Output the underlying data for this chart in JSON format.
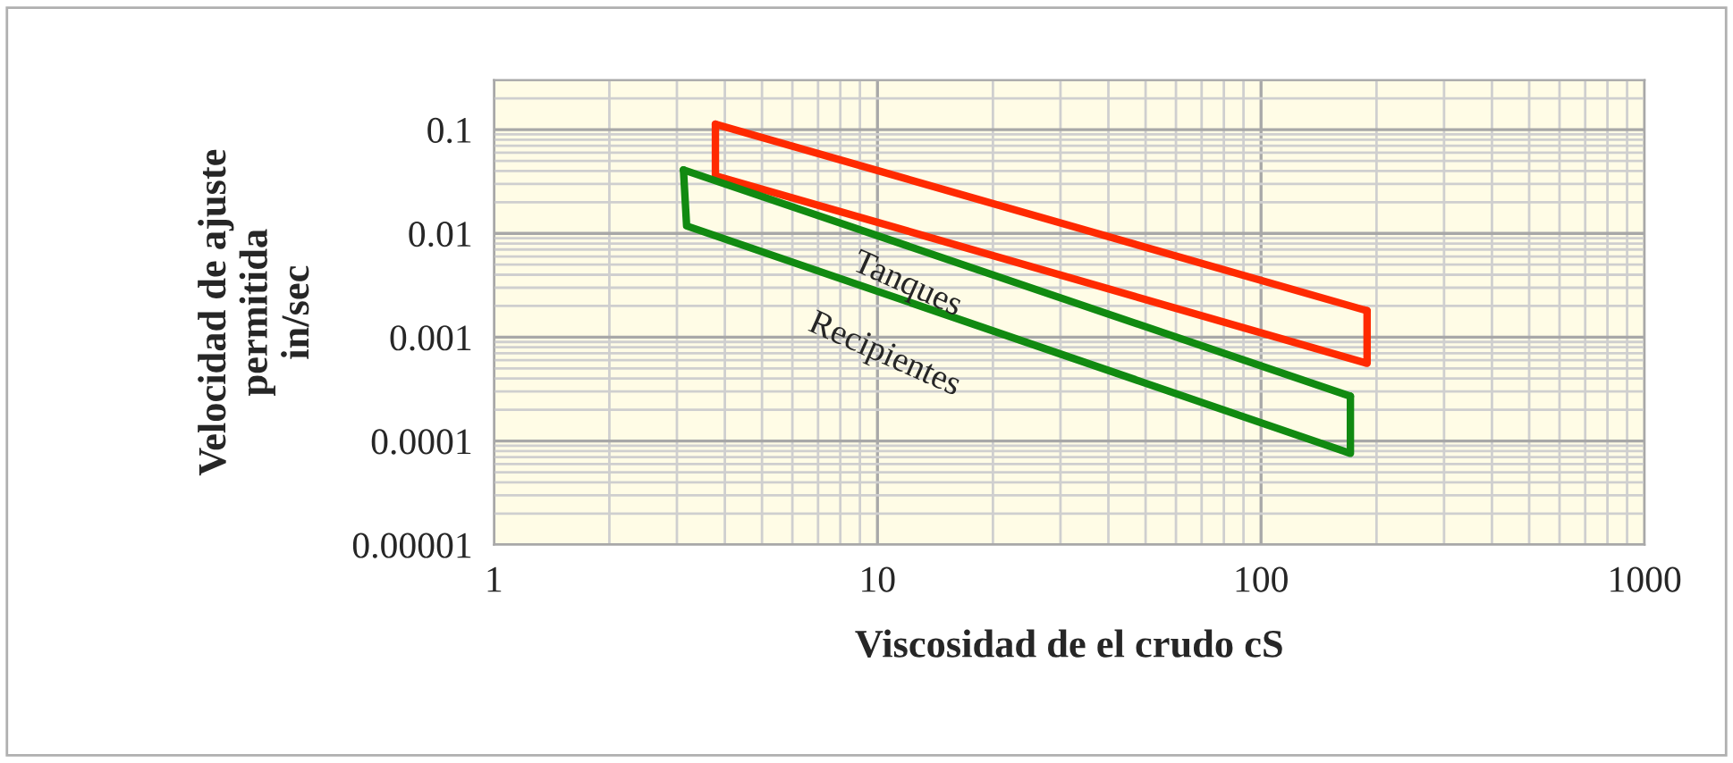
{
  "chart_data": {
    "type": "line",
    "xlabel": "Viscosidad de el crudo cS",
    "ylabel": "Velocidad de ajuste\npermitida\nin/sec",
    "log": "xy",
    "xlim": [
      1,
      1000
    ],
    "xticks": [
      1,
      10,
      100,
      1000
    ],
    "ylim": [
      1e-05,
      0.3
    ],
    "yticks": [
      {
        "value": 1e-05,
        "label": "0.00001"
      },
      {
        "value": 0.0001,
        "label": "0.0001"
      },
      {
        "value": 0.001,
        "label": "0.001"
      },
      {
        "value": 0.01,
        "label": "0.01"
      },
      {
        "value": 0.1,
        "label": "0.1"
      }
    ],
    "grid": true,
    "marker": "none",
    "line_style": "solid",
    "series": [
      {
        "name": "Tanques",
        "color": "#ff2a00",
        "x": [
          3.78,
          3.78,
          189,
          189
        ],
        "values": [
          0.113,
          0.036,
          0.00056,
          0.0018
        ]
      },
      {
        "color": "#ff2a00",
        "x": [
          3.78,
          189
        ],
        "values": [
          0.113,
          0.0018
        ]
      },
      {
        "name": "Recipientes",
        "color": "#118a11",
        "x": [
          3.12,
          3.18,
          171,
          171
        ],
        "values": [
          0.041,
          0.0118,
          7.6e-05,
          0.00027
        ]
      },
      {
        "color": "#118a11",
        "x": [
          3.12,
          171
        ],
        "values": [
          0.041,
          0.00027
        ]
      }
    ]
  }
}
